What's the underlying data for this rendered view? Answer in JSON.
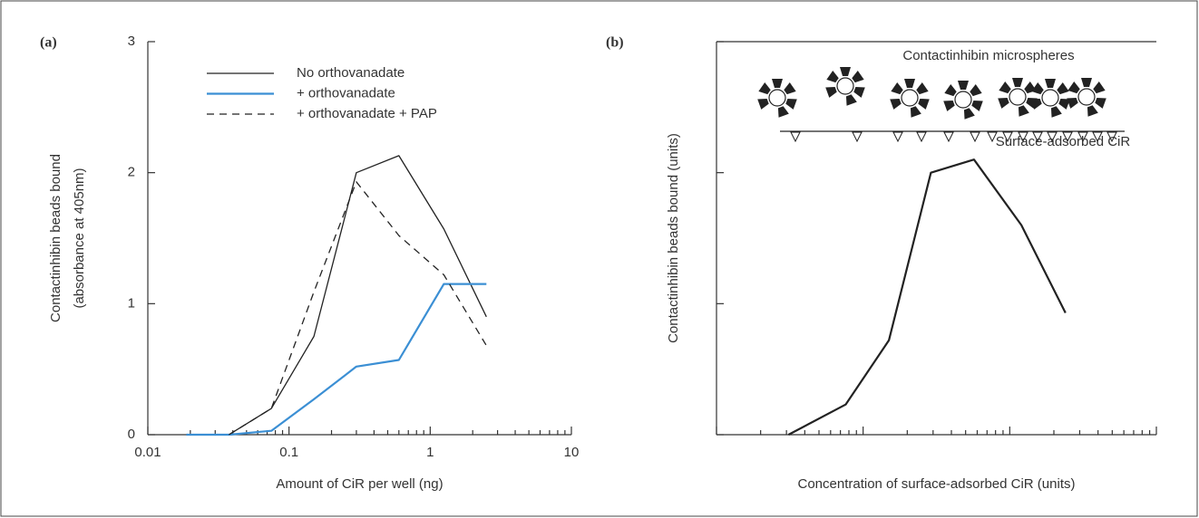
{
  "chart_data": [
    {
      "type": "line",
      "panel_label": "(a)",
      "xlabel": "Amount of CiR per well (ng)",
      "ylabel": [
        "Contactinhibin beads bound",
        "(absorbance at 405nm)"
      ],
      "log_x": true,
      "xlim": [
        0.01,
        10
      ],
      "xticks": [
        0.01,
        0.1,
        1,
        10
      ],
      "xminorticks": [
        0.02,
        0.03,
        0.04,
        0.05,
        0.06,
        0.07,
        0.08,
        0.09,
        0.2,
        0.3,
        0.4,
        0.5,
        0.6,
        0.7,
        0.8,
        0.9,
        2,
        3,
        4,
        5,
        6,
        7,
        8,
        9
      ],
      "ylim": [
        0,
        3
      ],
      "yticks": [
        0,
        1,
        2,
        3
      ],
      "tick_labels": true,
      "top_spine": false,
      "legend": "upper left",
      "series": [
        {
          "name": "No orthovanadate",
          "color": "#222222",
          "style": "solid",
          "width": 1.3,
          "x": [
            0.0375,
            0.075,
            0.15,
            0.3,
            0.6,
            1.25,
            2.5
          ],
          "values": [
            0,
            0.2,
            0.75,
            2.0,
            2.13,
            1.57,
            0.9
          ]
        },
        {
          "name": "+ orthovanadate",
          "color": "#3b8fd4",
          "style": "solid",
          "width": 2.2,
          "x": [
            0.01875,
            0.0375,
            0.075,
            0.15,
            0.3,
            0.6,
            1.25,
            2.5
          ],
          "values": [
            0,
            0,
            0.03,
            0.27,
            0.52,
            0.57,
            1.15,
            1.15
          ]
        },
        {
          "name": "+ orthovanadate + PAP",
          "color": "#222222",
          "style": "dashed",
          "width": 1.3,
          "x": [
            0.0375,
            0.075,
            0.15,
            0.3,
            0.6,
            1.25,
            2.5
          ],
          "values": [
            0,
            0.2,
            1.09,
            1.93,
            1.52,
            1.22,
            0.68
          ]
        }
      ]
    },
    {
      "type": "line",
      "panel_label": "(b)",
      "xlabel": "Concentration of surface-adsorbed CiR (units)",
      "ylabel": [
        "Contactinhibin beads bound (units)"
      ],
      "log_x": true,
      "xlim": [
        0.01,
        10
      ],
      "xticks": [
        0.01,
        0.1,
        1,
        10
      ],
      "xminorticks": [
        0.02,
        0.03,
        0.04,
        0.05,
        0.06,
        0.07,
        0.08,
        0.09,
        0.2,
        0.3,
        0.4,
        0.5,
        0.6,
        0.7,
        0.8,
        0.9,
        2,
        3,
        4,
        5,
        6,
        7,
        8,
        9
      ],
      "ylim": [
        0,
        3
      ],
      "yticks": [
        0,
        1,
        2,
        3
      ],
      "tick_labels": false,
      "top_spine": true,
      "annotations": [
        "Contactinhibin microspheres",
        "Surface-adsorbed CiR"
      ],
      "series": [
        {
          "color": "#222222",
          "style": "solid",
          "width": 2.2,
          "x": [
            0.031,
            0.076,
            0.15,
            0.29,
            0.57,
            1.2,
            2.4
          ],
          "values": [
            0,
            0.23,
            0.72,
            2.0,
            2.1,
            1.6,
            0.93
          ]
        }
      ]
    }
  ]
}
